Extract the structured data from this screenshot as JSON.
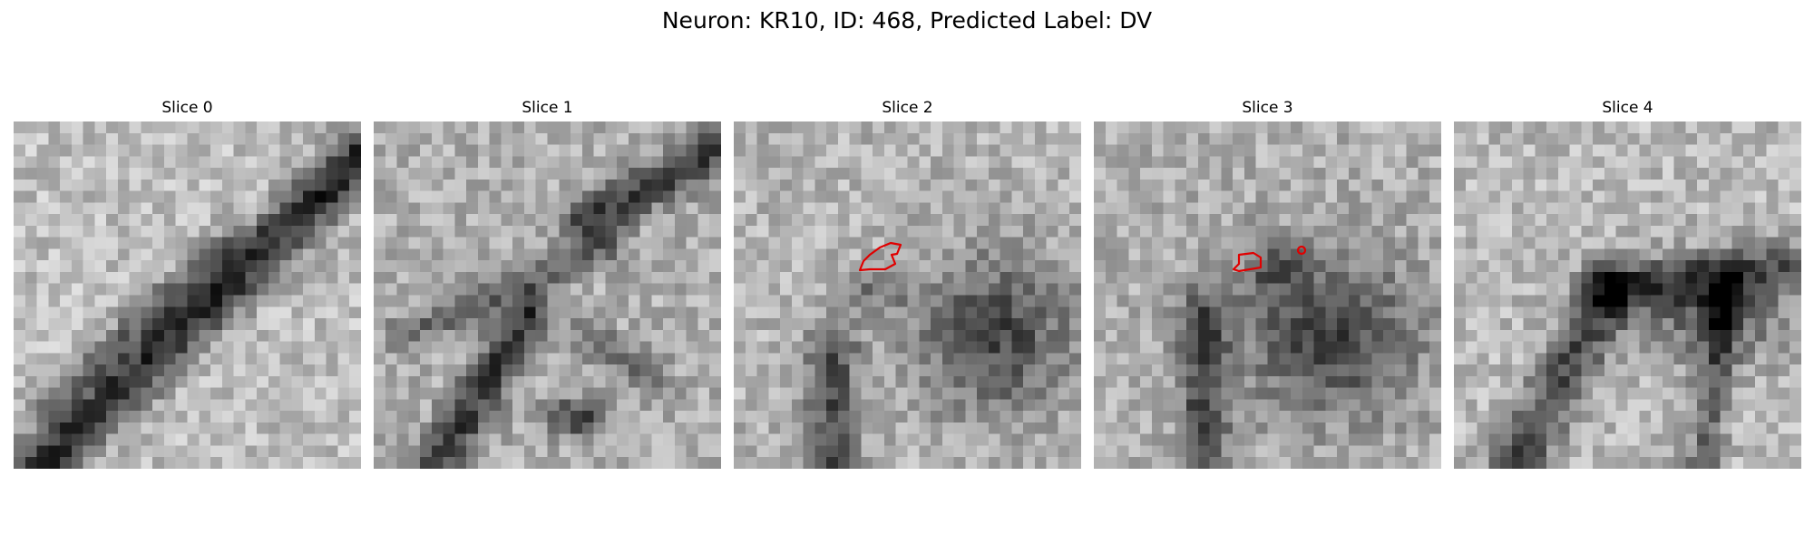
{
  "figure": {
    "title": "Neuron: KR10, ID: 468, Predicted Label: DV"
  },
  "colormap": "gray",
  "contour_color": "#e00000",
  "panels": [
    {
      "title": "Slice 0",
      "has_contour": false
    },
    {
      "title": "Slice 1",
      "has_contour": false
    },
    {
      "title": "Slice 2",
      "has_contour": true
    },
    {
      "title": "Slice 3",
      "has_contour": true
    },
    {
      "title": "Slice 4",
      "has_contour": false
    }
  ]
}
